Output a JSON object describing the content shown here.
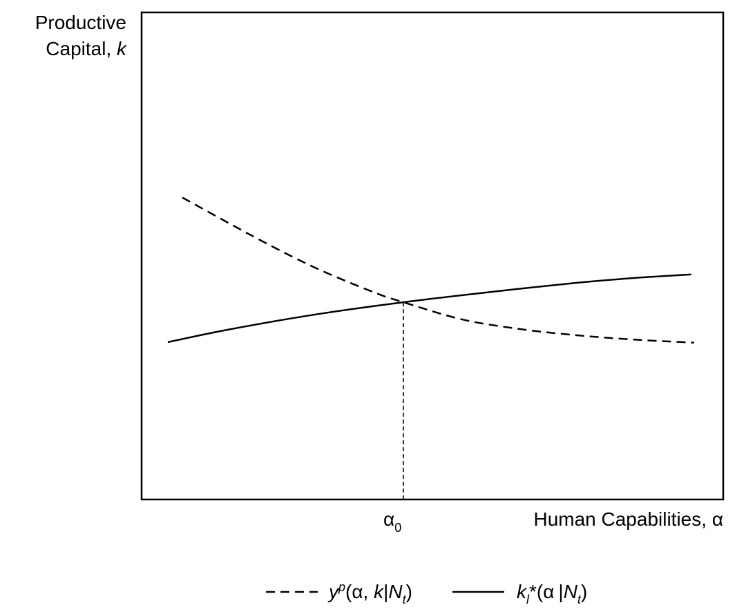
{
  "chart_data": {
    "type": "line",
    "ylabel": {
      "line1": "Productive",
      "line2_prefix": "Capital, ",
      "line2_var": "k"
    },
    "xlabel": "Human Capabilities, α",
    "x_tick": {
      "label": "α",
      "sub": "0"
    },
    "crossing": {
      "x": 0.45,
      "y": 0.405
    },
    "xlim": [
      0,
      1
    ],
    "ylim": [
      0,
      1
    ],
    "grid": false,
    "legend_placement": "bottom-center",
    "series": [
      {
        "name": "yp(α, k|Nt)",
        "style": "dashed",
        "color": "#000000",
        "points": [
          [
            0.07,
            0.62
          ],
          [
            0.2,
            0.535
          ],
          [
            0.3,
            0.475
          ],
          [
            0.4,
            0.425
          ],
          [
            0.45,
            0.405
          ],
          [
            0.55,
            0.37
          ],
          [
            0.65,
            0.35
          ],
          [
            0.75,
            0.337
          ],
          [
            0.85,
            0.328
          ],
          [
            0.95,
            0.322
          ]
        ]
      },
      {
        "name": "kl*(α|Nt)",
        "style": "solid",
        "color": "#000000",
        "points": [
          [
            0.045,
            0.323
          ],
          [
            0.15,
            0.349
          ],
          [
            0.3,
            0.38
          ],
          [
            0.45,
            0.405
          ],
          [
            0.6,
            0.426
          ],
          [
            0.75,
            0.445
          ],
          [
            0.85,
            0.455
          ],
          [
            0.945,
            0.462
          ]
        ]
      }
    ],
    "legend": {
      "dashed": {
        "main": "y",
        "sup": "p",
        "args_prefix": "(α, ",
        "arg_k": "k",
        "bar": "|",
        "arg_N": "N",
        "sub_t": "t",
        "close": ")"
      },
      "solid": {
        "main": "k",
        "sub_l": "l",
        "star": "*",
        "args_prefix": "(α",
        "bar": "|",
        "arg_N": "N",
        "sub_t": "t",
        "close": ")"
      }
    }
  }
}
